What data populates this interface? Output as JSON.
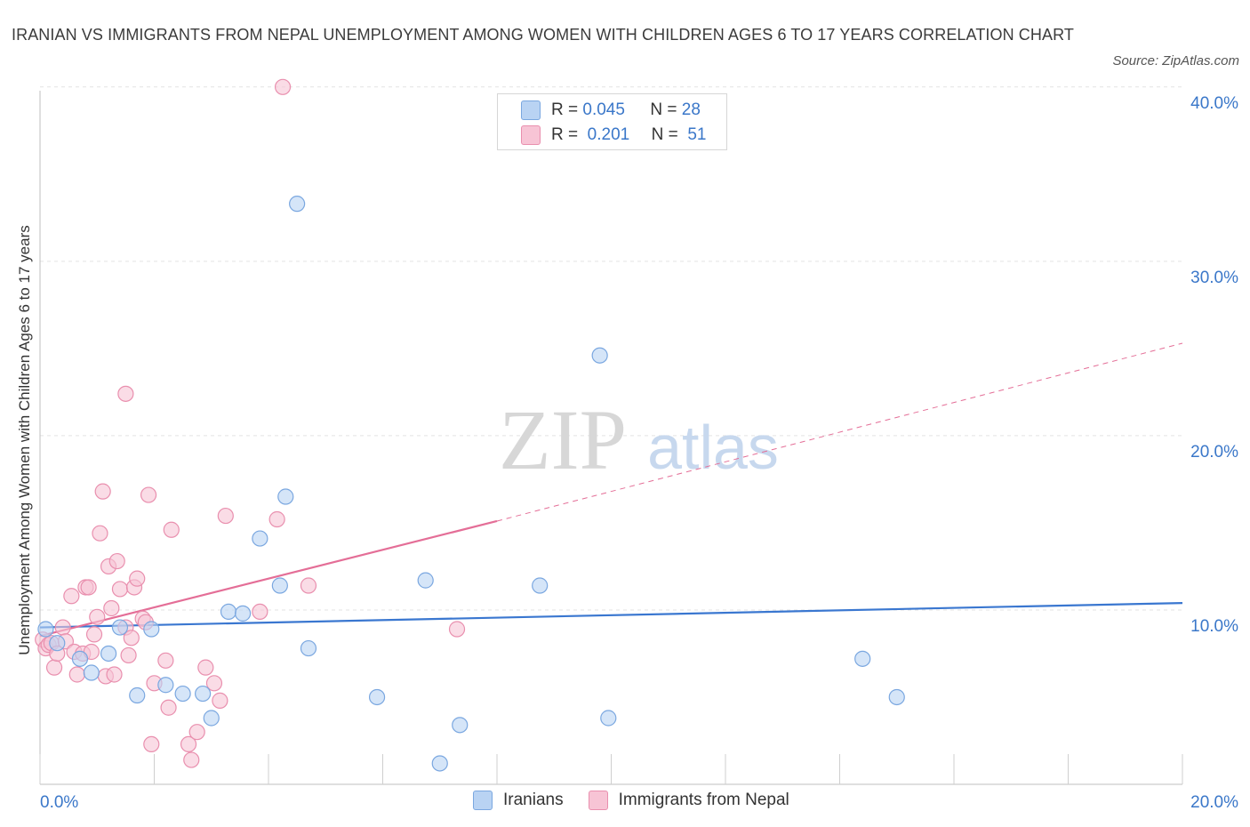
{
  "title": "IRANIAN VS IMMIGRANTS FROM NEPAL UNEMPLOYMENT AMONG WOMEN WITH CHILDREN AGES 6 TO 17 YEARS CORRELATION CHART",
  "source": "Source: ZipAtlas.com",
  "watermark": {
    "zip": "ZIP",
    "atlas": "atlas"
  },
  "legend": {
    "r_label": "R =",
    "n_label": "N =",
    "series": [
      {
        "name": "Iranians",
        "r": "0.045",
        "n": "28"
      },
      {
        "name": "Immigrants from Nepal",
        "r": "0.201",
        "n": "51"
      }
    ]
  },
  "colors": {
    "iranians_fill": "#b9d3f3",
    "iranians_stroke": "#7aa7e0",
    "iranians_line": "#3a77d0",
    "nepal_fill": "#f7c4d5",
    "nepal_stroke": "#e98fae",
    "nepal_line": "#e46e97",
    "axis_text": "#3a77c9",
    "grid": "#e3e3e3"
  },
  "chart_data": {
    "type": "scatter",
    "title": "IRANIAN VS IMMIGRANTS FROM NEPAL UNEMPLOYMENT AMONG WOMEN WITH CHILDREN AGES 6 TO 17 YEARS CORRELATION CHART",
    "xlabel": "",
    "ylabel": "Unemployment Among Women with Children Ages 6 to 17 years",
    "xlim": [
      0,
      20
    ],
    "ylim": [
      0,
      40.5
    ],
    "x_ticks": [
      0,
      2,
      4,
      6,
      8,
      10,
      12,
      14,
      16,
      18,
      20
    ],
    "x_tick_labels": [
      {
        "value": 0,
        "label": "0.0%"
      },
      {
        "value": 20,
        "label": "20.0%"
      }
    ],
    "y_ticks": [
      {
        "value": 10,
        "label": "10.0%"
      },
      {
        "value": 20,
        "label": "20.0%"
      },
      {
        "value": 30,
        "label": "30.0%"
      },
      {
        "value": 40,
        "label": "40.0%"
      }
    ],
    "series": [
      {
        "name": "Iranians",
        "points": [
          [
            0.1,
            8.9
          ],
          [
            0.3,
            8.1
          ],
          [
            0.7,
            7.2
          ],
          [
            0.9,
            6.4
          ],
          [
            1.2,
            7.5
          ],
          [
            1.4,
            9.0
          ],
          [
            1.7,
            5.1
          ],
          [
            1.95,
            8.9
          ],
          [
            2.2,
            5.7
          ],
          [
            2.5,
            5.2
          ],
          [
            2.85,
            5.2
          ],
          [
            3.0,
            3.8
          ],
          [
            3.3,
            9.9
          ],
          [
            3.55,
            9.8
          ],
          [
            3.85,
            14.1
          ],
          [
            4.2,
            11.4
          ],
          [
            4.3,
            16.5
          ],
          [
            4.5,
            33.3
          ],
          [
            4.7,
            7.8
          ],
          [
            5.9,
            5.0
          ],
          [
            6.75,
            11.7
          ],
          [
            7.0,
            1.2
          ],
          [
            7.35,
            3.4
          ],
          [
            8.75,
            11.4
          ],
          [
            9.8,
            24.6
          ],
          [
            9.95,
            3.8
          ],
          [
            14.4,
            7.2
          ],
          [
            15.0,
            5.0
          ]
        ],
        "trend": {
          "x": [
            0,
            20
          ],
          "y": [
            9.0,
            10.4
          ],
          "style": "solid"
        }
      },
      {
        "name": "Immigrants from Nepal",
        "points": [
          [
            0.05,
            8.3
          ],
          [
            0.1,
            7.8
          ],
          [
            0.15,
            8.0
          ],
          [
            0.2,
            8.1
          ],
          [
            0.25,
            6.7
          ],
          [
            0.3,
            7.5
          ],
          [
            0.4,
            9.0
          ],
          [
            0.45,
            8.2
          ],
          [
            0.55,
            10.8
          ],
          [
            0.6,
            7.6
          ],
          [
            0.65,
            6.3
          ],
          [
            0.75,
            7.5
          ],
          [
            0.8,
            11.3
          ],
          [
            0.85,
            11.3
          ],
          [
            0.9,
            7.6
          ],
          [
            0.95,
            8.6
          ],
          [
            1.0,
            9.6
          ],
          [
            1.05,
            14.4
          ],
          [
            1.1,
            16.8
          ],
          [
            1.15,
            6.2
          ],
          [
            1.2,
            12.5
          ],
          [
            1.25,
            10.1
          ],
          [
            1.3,
            6.3
          ],
          [
            1.35,
            12.8
          ],
          [
            1.4,
            11.2
          ],
          [
            1.5,
            9.0
          ],
          [
            1.5,
            22.4
          ],
          [
            1.55,
            7.4
          ],
          [
            1.6,
            8.4
          ],
          [
            1.65,
            11.3
          ],
          [
            1.7,
            11.8
          ],
          [
            1.8,
            9.5
          ],
          [
            1.85,
            9.3
          ],
          [
            1.9,
            16.6
          ],
          [
            1.95,
            2.3
          ],
          [
            2.0,
            5.8
          ],
          [
            2.2,
            7.1
          ],
          [
            2.25,
            4.4
          ],
          [
            2.3,
            14.6
          ],
          [
            2.6,
            2.3
          ],
          [
            2.65,
            1.4
          ],
          [
            2.75,
            3.0
          ],
          [
            2.9,
            6.7
          ],
          [
            3.05,
            5.8
          ],
          [
            3.15,
            4.8
          ],
          [
            3.25,
            15.4
          ],
          [
            3.85,
            9.9
          ],
          [
            4.15,
            15.2
          ],
          [
            4.25,
            40.0
          ],
          [
            4.7,
            11.4
          ],
          [
            7.3,
            8.9
          ]
        ],
        "trend": {
          "x": [
            0,
            8.0
          ],
          "y": [
            8.5,
            15.1
          ],
          "style": "solid",
          "extension": {
            "x": [
              8.0,
              20
            ],
            "y": [
              15.1,
              25.3
            ],
            "style": "dashed"
          }
        }
      }
    ]
  }
}
